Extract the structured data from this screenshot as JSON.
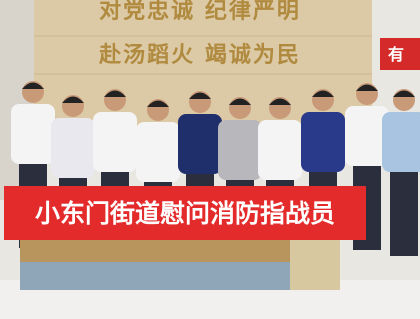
{
  "wall": {
    "line1": "对党忠诚 纪律严明",
    "line2": "赴汤蹈火 竭诚为民"
  },
  "sign": "有",
  "banner": "小东门街道慰问消防指战员"
}
